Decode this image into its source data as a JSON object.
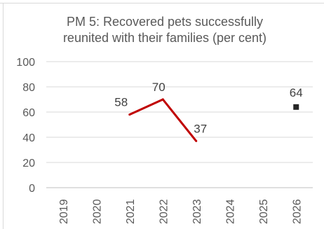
{
  "chart_data": {
    "type": "line",
    "title": "PM 5: Recovered pets successfully reunited with their families (per cent)",
    "title_lines": [
      "PM 5: Recovered pets successfully",
      "reunited with their families (per cent)"
    ],
    "xlabel": "",
    "ylabel": "",
    "ylim": [
      0,
      100
    ],
    "yticks": [
      "0",
      "20",
      "40",
      "60",
      "80",
      "100"
    ],
    "categories": [
      "2019",
      "2020",
      "2021",
      "2022",
      "2023",
      "2024",
      "2025",
      "2026"
    ],
    "grid": true,
    "legend": "none",
    "series": [
      {
        "style": "line",
        "color": "#c00000",
        "values": [
          null,
          null,
          58,
          70,
          37,
          null,
          null,
          null
        ],
        "labels": [
          "",
          "",
          "58",
          "70",
          "37",
          "",
          "",
          ""
        ]
      },
      {
        "style": "marker",
        "marker": "square",
        "color": "#262626",
        "values": [
          null,
          null,
          null,
          null,
          null,
          null,
          null,
          64
        ],
        "labels": [
          "",
          "",
          "",
          "",
          "",
          "",
          "",
          "64"
        ]
      }
    ]
  }
}
